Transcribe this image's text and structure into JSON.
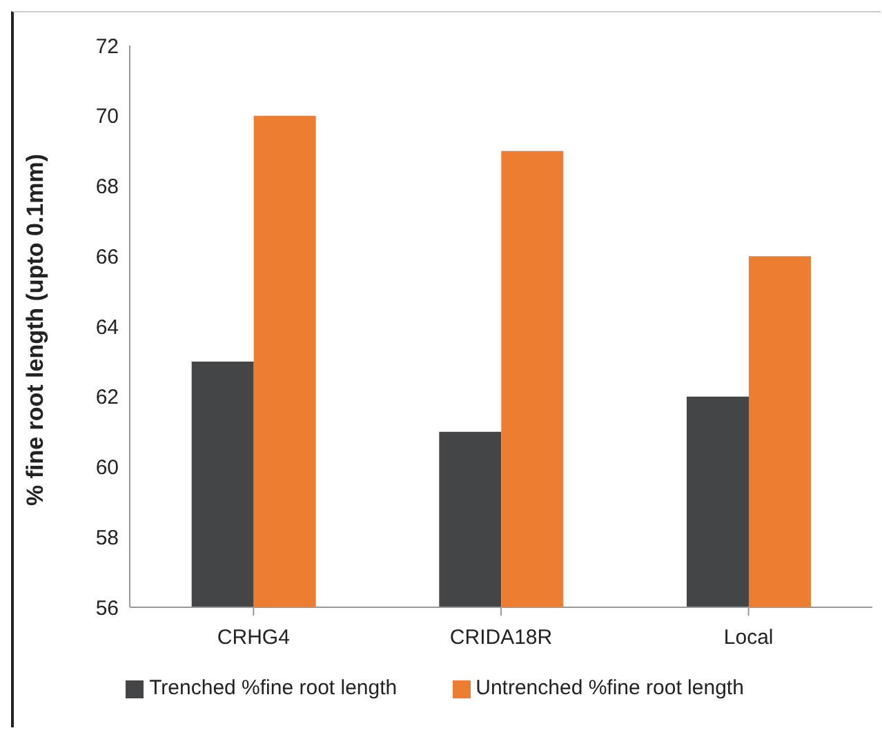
{
  "chart_data": {
    "type": "bar",
    "ylabel": "% fine root length (upto 0.1mm)",
    "categories": [
      "CRHG4",
      "CRIDA18R",
      "Local"
    ],
    "series": [
      {
        "name": "Trenched %fine root length",
        "color": "#444547",
        "values": [
          63,
          61,
          62
        ]
      },
      {
        "name": "Untrenched %fine root length",
        "color": "#ed7d31",
        "values": [
          70,
          69,
          66
        ]
      }
    ],
    "ylim": [
      56,
      72
    ],
    "yticks": [
      56,
      58,
      60,
      62,
      64,
      66,
      68,
      70,
      72
    ],
    "grid": false,
    "legend": "bottom"
  }
}
